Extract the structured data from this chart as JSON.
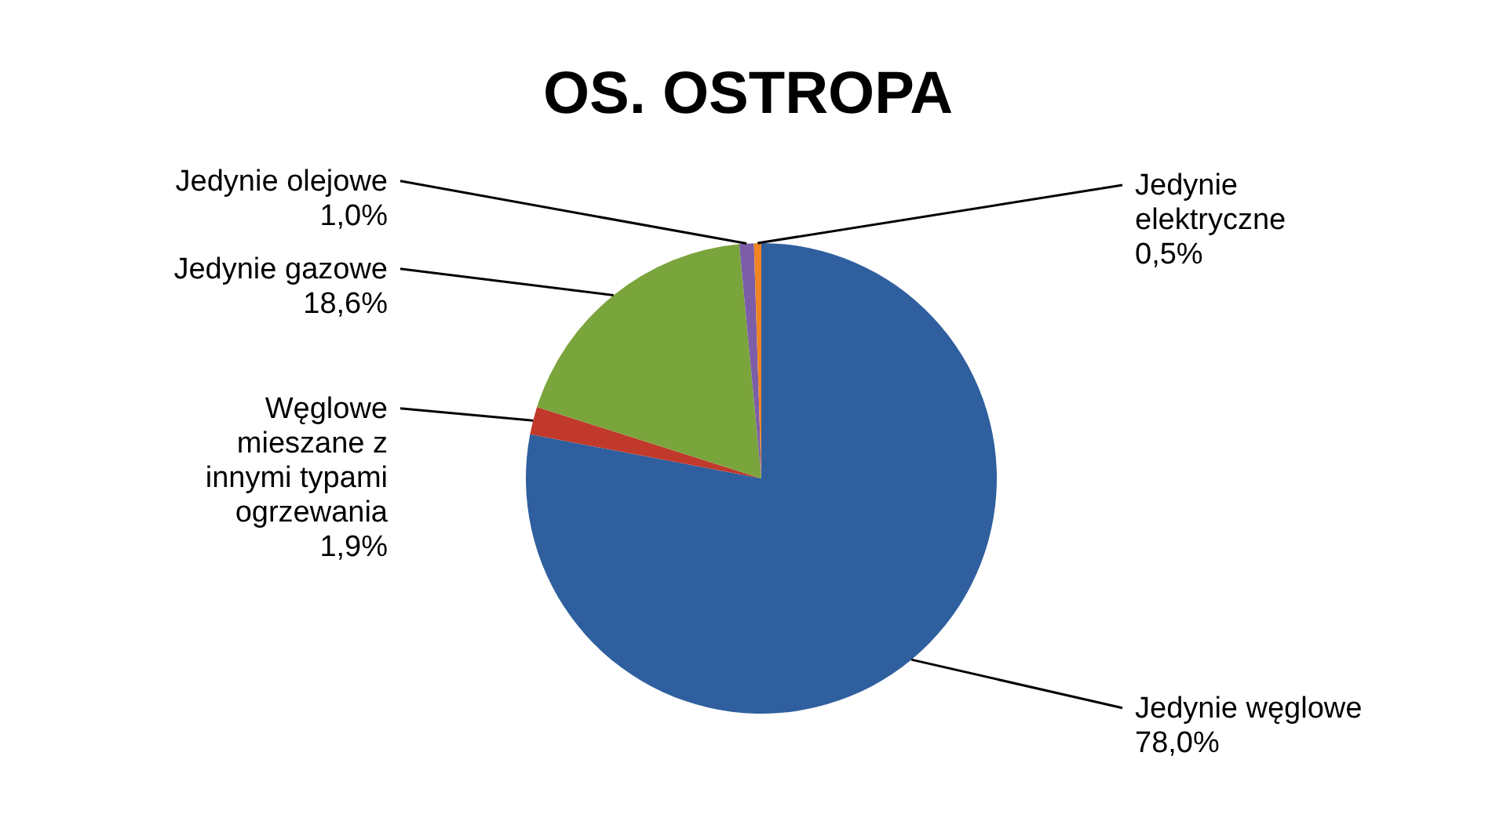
{
  "chart_data": {
    "type": "pie",
    "title": "OS. OSTROPA",
    "categories": [
      "Jedynie węglowe",
      "Węglowe mieszane z innymi typami ogrzewania",
      "Jedynie gazowe",
      "Jedynie olejowe",
      "Jedynie elektryczne"
    ],
    "values": [
      78.0,
      1.9,
      18.6,
      1.0,
      0.5
    ],
    "value_labels": [
      "78,0%",
      "1,9%",
      "18,6%",
      "1,0%",
      "0,5%"
    ],
    "colors": [
      "#2f5f9e",
      "#c0392b",
      "#7aa43c",
      "#7b5ea7",
      "#f08424"
    ]
  }
}
